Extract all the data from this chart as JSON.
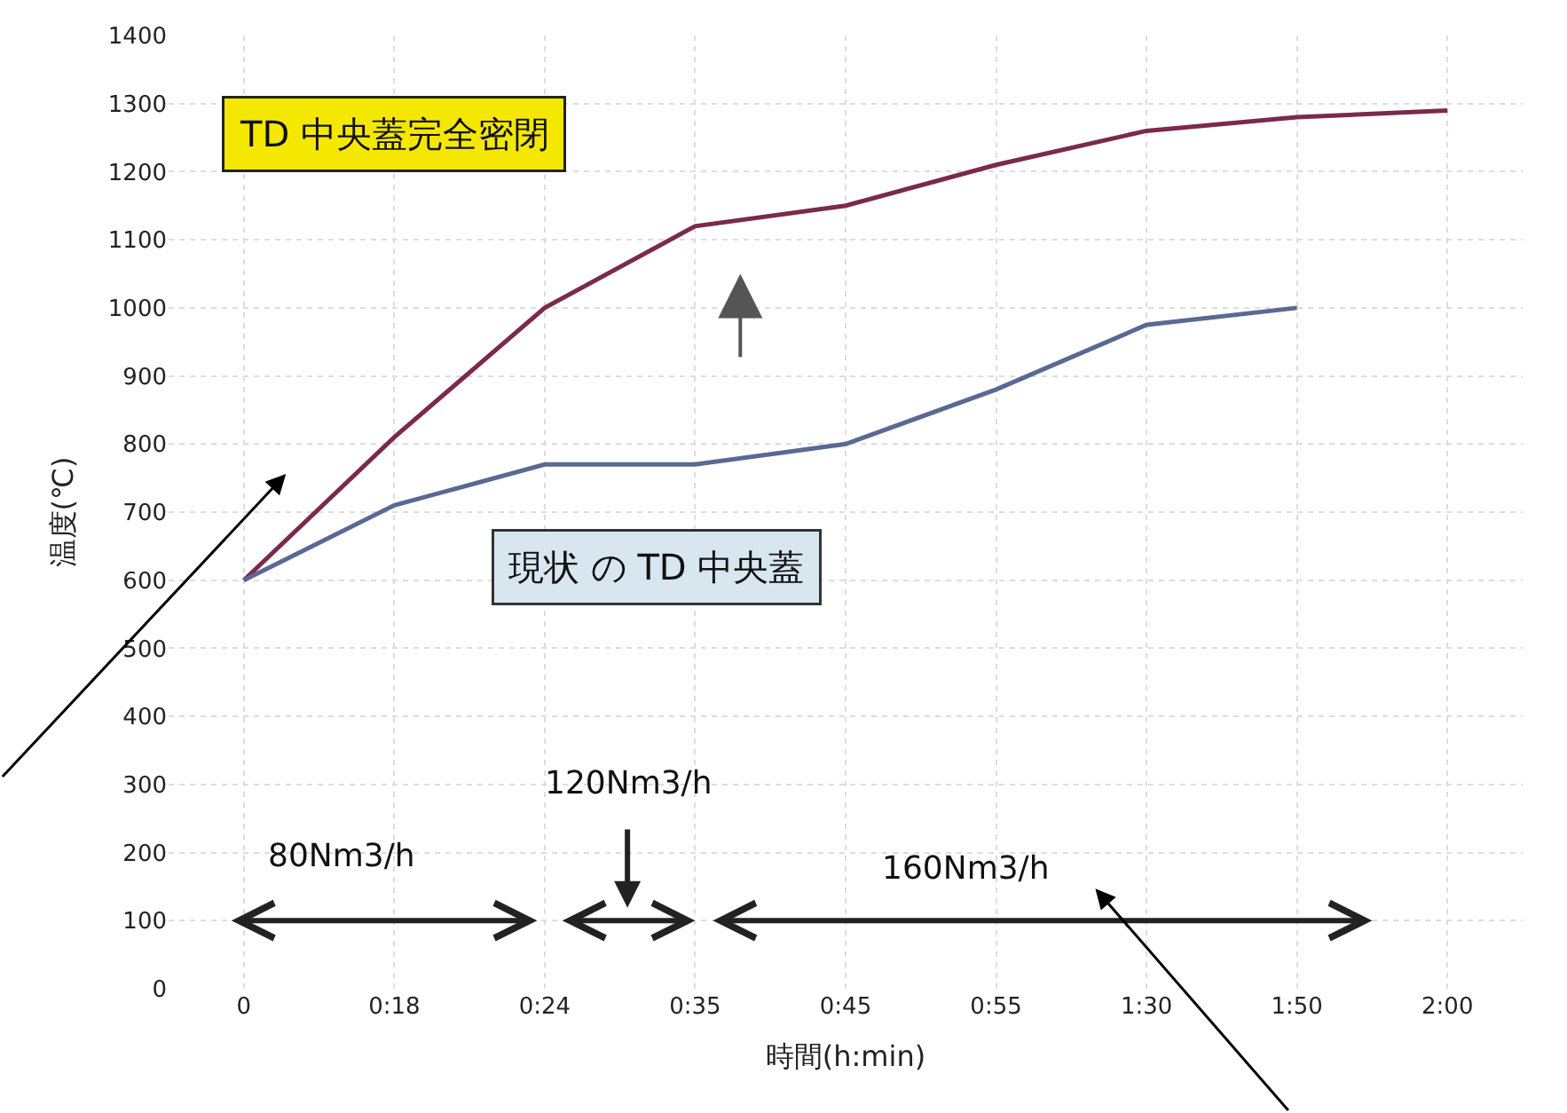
{
  "chart_data": {
    "type": "line",
    "xlabel": "時間(h:min)",
    "ylabel": "温度(℃)",
    "categories": [
      "0",
      "0:18",
      "0:24",
      "0:35",
      "0:45",
      "0:55",
      "1:30",
      "1:50",
      "2:00"
    ],
    "series": [
      {
        "color": "#7a2a4a",
        "values": [
          600,
          810,
          1000,
          1120,
          1150,
          1210,
          1260,
          1280,
          1290
        ]
      },
      {
        "color": "#5a6894",
        "values": [
          600,
          710,
          770,
          770,
          800,
          880,
          975,
          1000,
          null
        ]
      }
    ],
    "ylim": [
      0,
      1400
    ],
    "yticks": [
      0,
      100,
      200,
      300,
      400,
      500,
      600,
      700,
      800,
      900,
      1000,
      1100,
      1200,
      1300,
      1400
    ],
    "grid": true,
    "marker": "none",
    "line_style": "solid",
    "annotations": [
      "TD 中央蓋完全密閉",
      "現状 の TD 中央蓋",
      "80Nm3/h",
      "120Nm3/h",
      "160Nm3/h"
    ]
  }
}
